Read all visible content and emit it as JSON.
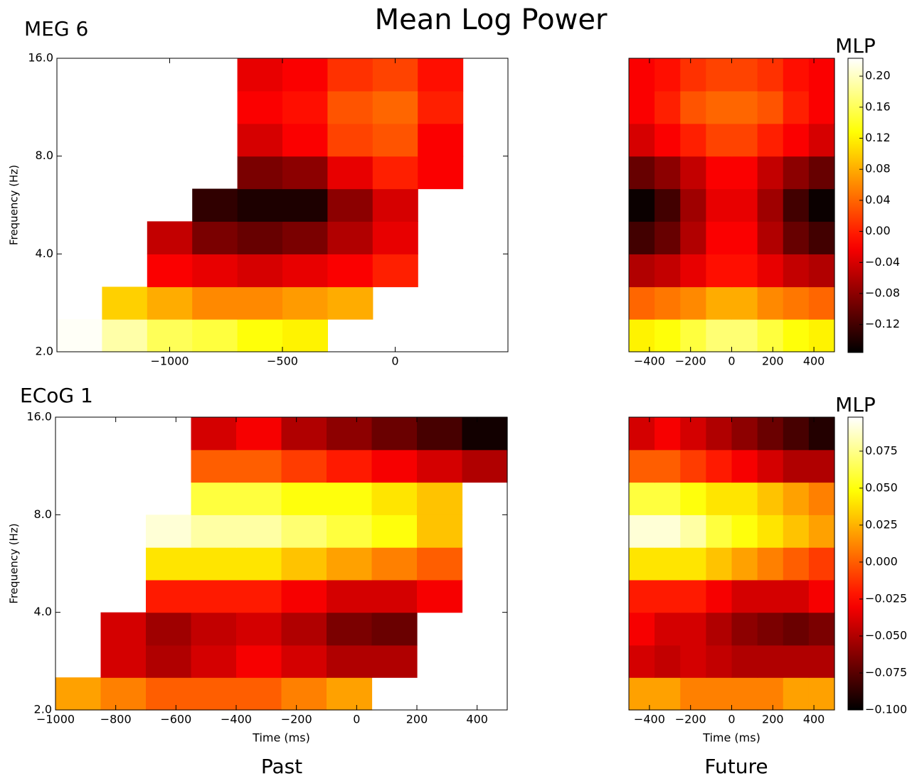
{
  "title": "Mean Log Power",
  "column_labels": [
    "Past",
    "Future"
  ],
  "chart_data": [
    {
      "type": "heatmap",
      "title": "MEG 6",
      "ylabel": "Frequency (Hz)",
      "colormap": "hot",
      "ylog": true,
      "vlim": [
        -0.156,
        0.223
      ],
      "xlim": [
        -1500,
        500
      ],
      "ylim": [
        2,
        16
      ],
      "xticks": [
        {
          "value": -1000,
          "label": "−1000"
        },
        {
          "value": -500,
          "label": "−500"
        },
        0
      ],
      "yticks": [
        {
          "value": 2,
          "label": "2.0"
        },
        {
          "value": 4,
          "label": "4.0"
        },
        {
          "value": 8,
          "label": "8.0"
        },
        {
          "value": 16,
          "label": "16.0"
        }
      ],
      "xbins": [
        -1500,
        -1300,
        -1100,
        -900,
        -700,
        -500,
        -300,
        -100,
        100,
        300,
        500
      ],
      "ybins": [
        2,
        2.52,
        3.17,
        4,
        5.04,
        6.35,
        8,
        10.08,
        12.7,
        16
      ],
      "values": [
        [
          0.22,
          0.19,
          0.16,
          0.15,
          0.13,
          0.12,
          null,
          null,
          null,
          null
        ],
        [
          null,
          0.1,
          0.08,
          0.06,
          0.06,
          0.07,
          0.08,
          null,
          null,
          null
        ],
        [
          null,
          null,
          -0.02,
          -0.03,
          -0.04,
          -0.03,
          -0.02,
          0.0,
          null,
          null
        ],
        [
          null,
          null,
          -0.05,
          -0.09,
          -0.1,
          -0.09,
          -0.06,
          -0.03,
          null,
          null
        ],
        [
          null,
          null,
          null,
          -0.13,
          -0.14,
          -0.14,
          -0.08,
          -0.04,
          null,
          null
        ],
        [
          null,
          null,
          null,
          null,
          -0.09,
          -0.08,
          -0.03,
          0.0,
          -0.02,
          null
        ],
        [
          null,
          null,
          null,
          null,
          -0.04,
          -0.02,
          0.02,
          0.03,
          -0.02,
          null
        ],
        [
          null,
          null,
          null,
          null,
          -0.02,
          -0.01,
          0.03,
          0.04,
          0.0,
          null
        ],
        [
          null,
          null,
          null,
          null,
          -0.03,
          -0.02,
          0.01,
          0.02,
          -0.01,
          null
        ]
      ]
    },
    {
      "type": "heatmap",
      "colormap": "hot",
      "ylog": true,
      "vlim": [
        -0.156,
        0.223
      ],
      "xlim": [
        -500,
        500
      ],
      "ylim": [
        2,
        16
      ],
      "xticks": [
        {
          "value": -400,
          "label": "−400"
        },
        {
          "value": -200,
          "label": "−200"
        },
        0,
        200,
        400
      ],
      "xbins": [
        -500,
        -375,
        -250,
        -125,
        0,
        125,
        250,
        375,
        500
      ],
      "ybins": [
        2,
        2.52,
        3.17,
        4,
        5.04,
        6.35,
        8,
        10.08,
        12.7,
        16
      ],
      "values": [
        [
          0.12,
          0.13,
          0.15,
          0.17,
          0.17,
          0.15,
          0.13,
          0.12
        ],
        [
          0.04,
          0.05,
          0.06,
          0.08,
          0.08,
          0.06,
          0.05,
          0.04
        ],
        [
          -0.06,
          -0.05,
          -0.03,
          -0.01,
          -0.01,
          -0.03,
          -0.05,
          -0.06
        ],
        [
          -0.12,
          -0.1,
          -0.06,
          -0.02,
          -0.02,
          -0.06,
          -0.1,
          -0.12
        ],
        [
          -0.15,
          -0.12,
          -0.07,
          -0.03,
          -0.03,
          -0.07,
          -0.12,
          -0.15
        ],
        [
          -0.1,
          -0.08,
          -0.05,
          -0.02,
          -0.02,
          -0.05,
          -0.08,
          -0.1
        ],
        [
          -0.04,
          -0.02,
          0.0,
          0.02,
          0.02,
          0.0,
          -0.02,
          -0.04
        ],
        [
          -0.02,
          0.0,
          0.03,
          0.04,
          0.04,
          0.03,
          0.0,
          -0.02
        ],
        [
          -0.02,
          -0.01,
          0.01,
          0.02,
          0.02,
          0.01,
          -0.01,
          -0.02
        ]
      ],
      "colorbar": {
        "label": "MLP",
        "ticks": [
          {
            "value": -0.12,
            "label": "−0.12"
          },
          {
            "value": -0.08,
            "label": "−0.08"
          },
          {
            "value": -0.04,
            "label": "−0.04"
          },
          {
            "value": 0,
            "label": "0.00"
          },
          0.04,
          0.08,
          0.12,
          0.16,
          {
            "value": 0.2,
            "label": "0.20"
          }
        ]
      }
    },
    {
      "type": "heatmap",
      "title": "ECoG 1",
      "xlabel": "Time (ms)",
      "ylabel": "Frequency (Hz)",
      "colormap": "hot",
      "ylog": true,
      "vlim": [
        -0.1,
        0.098
      ],
      "xlim": [
        -1000,
        500
      ],
      "ylim": [
        2,
        16
      ],
      "xticks": [
        {
          "value": -1000,
          "label": "−1000"
        },
        {
          "value": -800,
          "label": "−800"
        },
        {
          "value": -600,
          "label": "−600"
        },
        {
          "value": -400,
          "label": "−400"
        },
        {
          "value": -200,
          "label": "−200"
        },
        0,
        200,
        400
      ],
      "yticks": [
        {
          "value": 2,
          "label": "2.0"
        },
        {
          "value": 4,
          "label": "4.0"
        },
        {
          "value": 8,
          "label": "8.0"
        },
        {
          "value": 16,
          "label": "16.0"
        }
      ],
      "xbins": [
        -1000,
        -850,
        -700,
        -550,
        -400,
        -250,
        -100,
        50,
        200,
        350,
        500
      ],
      "ybins": [
        2,
        2.52,
        3.17,
        4,
        5.04,
        6.35,
        8,
        10.08,
        12.7,
        16
      ],
      "values": [
        [
          0.02,
          0.01,
          0.0,
          0.0,
          0.0,
          0.01,
          0.02,
          null,
          null,
          null
        ],
        [
          null,
          -0.04,
          -0.05,
          -0.04,
          -0.03,
          -0.04,
          -0.05,
          -0.05,
          null,
          null
        ],
        [
          null,
          -0.04,
          -0.055,
          -0.045,
          -0.04,
          -0.05,
          -0.065,
          -0.07,
          null,
          null
        ],
        [
          null,
          null,
          -0.02,
          -0.02,
          -0.02,
          -0.03,
          -0.04,
          -0.04,
          -0.03,
          null
        ],
        [
          null,
          null,
          0.04,
          0.04,
          0.04,
          0.03,
          0.02,
          0.01,
          0.0,
          null
        ],
        [
          null,
          null,
          0.09,
          0.08,
          0.08,
          0.07,
          0.06,
          0.05,
          0.03,
          null
        ],
        [
          null,
          null,
          null,
          0.06,
          0.06,
          0.05,
          0.05,
          0.04,
          0.03,
          null
        ],
        [
          null,
          null,
          null,
          0.0,
          0.0,
          -0.01,
          -0.02,
          -0.03,
          -0.04,
          -0.05
        ],
        [
          null,
          null,
          null,
          -0.04,
          -0.03,
          -0.05,
          -0.06,
          -0.07,
          -0.08,
          -0.095
        ]
      ]
    },
    {
      "type": "heatmap",
      "xlabel": "Time (ms)",
      "colormap": "hot",
      "ylog": true,
      "vlim": [
        -0.1,
        0.098
      ],
      "xlim": [
        -500,
        500
      ],
      "ylim": [
        2,
        16
      ],
      "xticks": [
        {
          "value": -400,
          "label": "−400"
        },
        {
          "value": -200,
          "label": "−200"
        },
        0,
        200,
        400
      ],
      "xbins": [
        -500,
        -375,
        -250,
        -125,
        0,
        125,
        250,
        375,
        500
      ],
      "ybins": [
        2,
        2.52,
        3.17,
        4,
        5.04,
        6.35,
        8,
        10.08,
        12.7,
        16
      ],
      "values": [
        [
          0.02,
          0.02,
          0.01,
          0.01,
          0.01,
          0.01,
          0.02,
          0.02
        ],
        [
          -0.04,
          -0.045,
          -0.04,
          -0.045,
          -0.05,
          -0.05,
          -0.05,
          -0.05
        ],
        [
          -0.03,
          -0.04,
          -0.04,
          -0.05,
          -0.06,
          -0.065,
          -0.07,
          -0.065
        ],
        [
          -0.02,
          -0.02,
          -0.02,
          -0.03,
          -0.04,
          -0.04,
          -0.04,
          -0.03
        ],
        [
          0.04,
          0.04,
          0.04,
          0.03,
          0.02,
          0.01,
          0.0,
          -0.01
        ],
        [
          0.09,
          0.09,
          0.08,
          0.06,
          0.05,
          0.04,
          0.03,
          0.02
        ],
        [
          0.06,
          0.06,
          0.05,
          0.04,
          0.04,
          0.03,
          0.02,
          0.01
        ],
        [
          0.0,
          0.0,
          -0.01,
          -0.02,
          -0.03,
          -0.04,
          -0.05,
          -0.05
        ],
        [
          -0.04,
          -0.03,
          -0.04,
          -0.05,
          -0.06,
          -0.07,
          -0.08,
          -0.09
        ]
      ],
      "colorbar": {
        "label": "MLP",
        "ticks": [
          {
            "value": -0.1,
            "label": "−0.100"
          },
          {
            "value": -0.075,
            "label": "−0.075"
          },
          {
            "value": -0.05,
            "label": "−0.050"
          },
          {
            "value": -0.025,
            "label": "−0.025"
          },
          {
            "value": 0,
            "label": "0.000"
          },
          0.025,
          {
            "value": 0.05,
            "label": "0.050"
          },
          0.075
        ]
      }
    }
  ]
}
